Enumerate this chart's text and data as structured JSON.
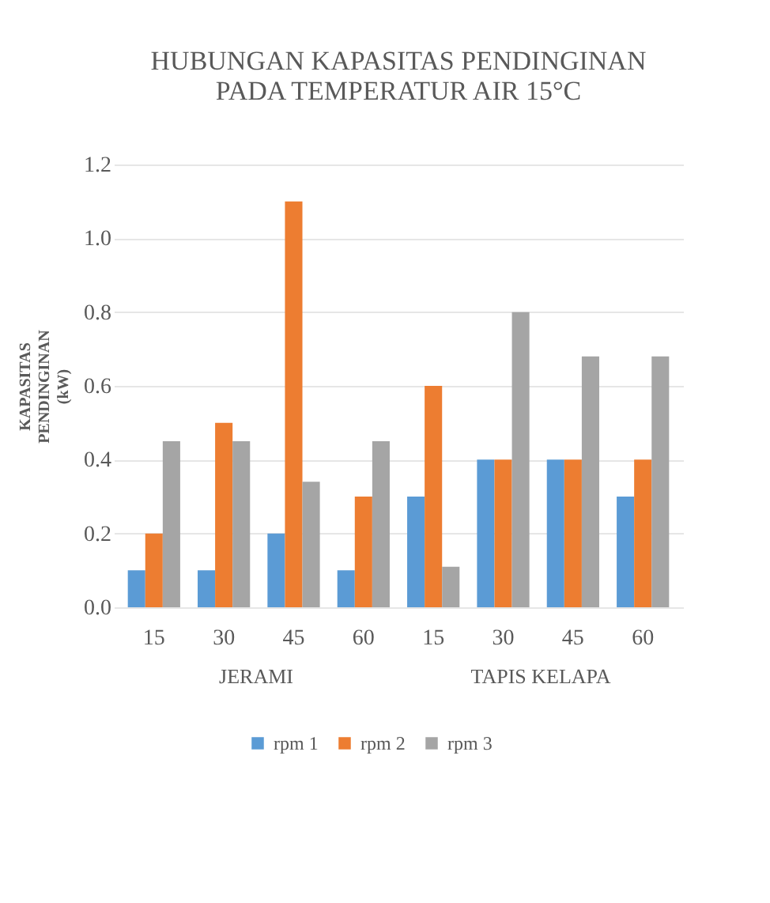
{
  "chart_data": {
    "type": "bar",
    "title": [
      "HUBUNGAN KAPASITAS PENDINGINAN",
      "PADA TEMPERATUR AIR 15°C"
    ],
    "ylabel": "KAPASITAS PENDINGINAN (kW)",
    "categories": [
      "15",
      "30",
      "45",
      "60",
      "15",
      "30",
      "45",
      "60"
    ],
    "annotations": [
      "JERAMI",
      "TAPIS KELAPA"
    ],
    "series": [
      {
        "name": "rpm 1",
        "color": "#5b9bd5",
        "values": [
          0.1,
          0.1,
          0.2,
          0.1,
          0.3,
          0.4,
          0.4,
          0.3
        ]
      },
      {
        "name": "rpm 2",
        "color": "#ed7d31",
        "values": [
          0.2,
          0.5,
          1.1,
          0.3,
          0.6,
          0.4,
          0.4,
          0.4
        ]
      },
      {
        "name": "rpm 3",
        "color": "#a5a5a5",
        "values": [
          0.45,
          0.45,
          0.34,
          0.45,
          0.11,
          0.8,
          0.68,
          0.68
        ]
      }
    ],
    "ylim": [
      0,
      1.2
    ],
    "yticks": [
      {
        "value": 0,
        "label": "0.0"
      },
      {
        "value": 0.2,
        "label": "0.2"
      },
      {
        "value": 0.4,
        "label": "0.4"
      },
      {
        "value": 0.6,
        "label": "0.6"
      },
      {
        "value": 0.8,
        "label": "0.8"
      },
      {
        "value": 1.0,
        "label": "1.0"
      },
      {
        "value": 1.2,
        "label": "1.2"
      }
    ],
    "grid": "y",
    "legend": "bottom"
  }
}
